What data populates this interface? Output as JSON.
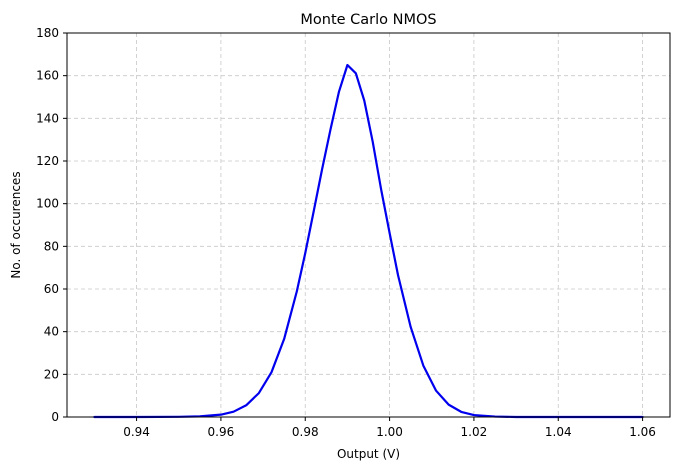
{
  "chart_data": {
    "type": "line",
    "title": "Monte Carlo NMOS",
    "xlabel": "Output (V)",
    "ylabel": "No. of occurences",
    "xlim": [
      0.9235,
      1.0665
    ],
    "ylim": [
      0,
      180
    ],
    "xticks": [
      0.94,
      0.96,
      0.98,
      1.0,
      1.02,
      1.04,
      1.06
    ],
    "xtick_labels": [
      "0.94",
      "0.96",
      "0.98",
      "1.00",
      "1.02",
      "1.04",
      "1.06"
    ],
    "yticks": [
      0,
      20,
      40,
      60,
      80,
      100,
      120,
      140,
      160,
      180
    ],
    "ytick_labels": [
      "0",
      "20",
      "40",
      "60",
      "80",
      "100",
      "120",
      "140",
      "160",
      "180"
    ],
    "grid": true,
    "grid_style": "dashed",
    "series": [
      {
        "color": "#0000ee",
        "x": [
          0.93,
          0.94,
          0.95,
          0.955,
          0.96,
          0.963,
          0.966,
          0.969,
          0.972,
          0.975,
          0.978,
          0.98,
          0.982,
          0.984,
          0.986,
          0.988,
          0.99,
          0.992,
          0.994,
          0.996,
          0.998,
          1.0,
          1.002,
          1.005,
          1.008,
          1.011,
          1.014,
          1.017,
          1.02,
          1.025,
          1.03,
          1.04,
          1.05,
          1.06
        ],
        "y": [
          0.0,
          0.0,
          0.1,
          0.3,
          1.1,
          2.5,
          5.5,
          11.2,
          21.0,
          36.6,
          58.9,
          76.8,
          96.4,
          116.2,
          134.9,
          152.5,
          165.0,
          161.1,
          148.3,
          129.0,
          106.6,
          86.3,
          66.5,
          42.2,
          24.1,
          12.4,
          5.8,
          2.4,
          0.9,
          0.2,
          0.0,
          0.0,
          0.0,
          0.0
        ]
      }
    ]
  }
}
